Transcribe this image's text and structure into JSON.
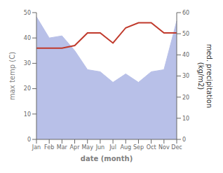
{
  "chart_data": {
    "type": "line",
    "categories": [
      "Jan",
      "Feb",
      "Mar",
      "Apr",
      "May",
      "Jun",
      "Jul",
      "Aug",
      "Sep",
      "Oct",
      "Nov",
      "Dec"
    ],
    "series": [
      {
        "type": "area",
        "axis": "y2",
        "color": "#b8c0e8",
        "values": [
          58,
          48,
          49,
          42,
          33,
          32,
          27,
          31,
          27,
          32,
          33,
          56
        ]
      },
      {
        "type": "line",
        "color": "#c0392b",
        "values": [
          36,
          36,
          36,
          37,
          42,
          42,
          38,
          44,
          46,
          46,
          42,
          42
        ]
      }
    ],
    "xlabel": "date (month)",
    "ylabel": "max temp (C)",
    "y2label": "med. precipitation\n(kg/m2)",
    "ylim": [
      0,
      50
    ],
    "yticks": [
      0,
      10,
      20,
      30,
      40,
      50
    ],
    "y2lim": [
      0,
      60
    ],
    "y2ticks": [
      0,
      10,
      20,
      30,
      40,
      50,
      60
    ],
    "grid": false
  }
}
